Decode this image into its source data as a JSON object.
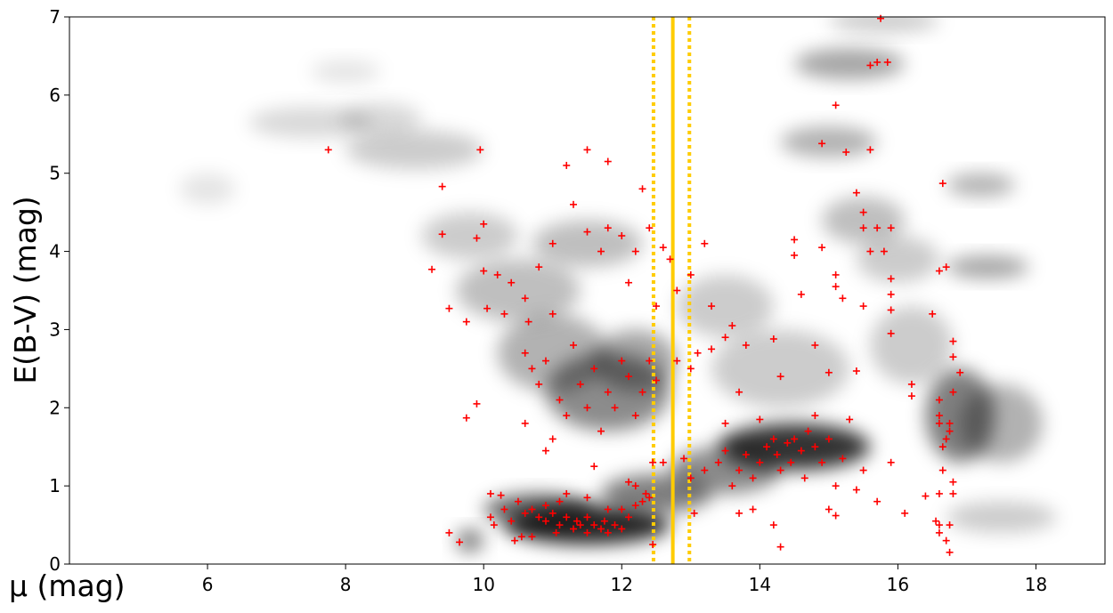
{
  "chart_data": {
    "type": "scatter",
    "x_label": "μ (mag)",
    "y_label": "E(B-V) (mag)",
    "xlim": [
      4,
      19
    ],
    "ylim": [
      0,
      7
    ],
    "xticks": [
      6,
      8,
      10,
      12,
      14,
      16,
      18
    ],
    "yticks": [
      0,
      1,
      2,
      3,
      4,
      5,
      6,
      7
    ],
    "series": [
      {
        "color": "#ff0000",
        "marker": "+",
        "x": [
          10.1,
          10.25,
          10.3,
          10.1,
          10.15,
          10.4,
          10.5,
          10.6,
          10.7,
          10.8,
          10.9,
          11,
          11.1,
          11.1,
          11.2,
          11.3,
          11.35,
          11.4,
          11.5,
          11.5,
          11.6,
          11.7,
          11.75,
          11.8,
          11.9,
          12,
          12,
          12.1,
          12.2,
          12.3,
          12.35,
          12.4,
          12.2,
          11.2,
          11.5,
          10.55,
          10.7,
          9.5,
          9.65,
          10.45,
          11.05,
          12.45,
          12.1,
          12.45,
          12.6,
          11.8,
          10.9,
          13,
          13.2,
          13.4,
          13.5,
          13.6,
          13.7,
          13.8,
          13.9,
          14,
          14.1,
          14.2,
          14.25,
          14.3,
          14.4,
          14.45,
          14.5,
          14.6,
          14.65,
          14.7,
          14.8,
          14.9,
          15,
          15.1,
          15.2,
          15.3,
          15.4,
          15.5,
          15.7,
          15.9,
          14.3,
          13.9,
          14.2,
          13.7,
          15,
          15.1,
          14,
          13.5,
          14.8,
          16.1,
          13.05,
          12.9,
          10.6,
          10.7,
          10.8,
          10.65,
          10.9,
          11,
          11.1,
          11.2,
          11.3,
          11.4,
          11.5,
          11.6,
          11.7,
          11.8,
          11.9,
          12,
          12.1,
          12.2,
          12.3,
          12.4,
          12.5,
          12.8,
          13,
          13.1,
          13.3,
          13.5,
          13.6,
          13.8,
          10.2,
          10.4,
          10.6,
          10.8,
          11,
          11.3,
          11.5,
          11.7,
          11.8,
          12,
          12.2,
          12.4,
          12.6,
          11.2,
          11.5,
          11.8,
          12.3,
          12.1,
          12.5,
          12.8,
          13,
          13.2,
          13.3,
          12.7,
          10.0,
          10.3,
          10.9,
          11.6,
          9.75,
          9.9,
          10.6,
          11,
          7.75,
          9.4,
          9.95,
          9.25,
          9.4,
          9.5,
          9.75,
          9.9,
          10.05,
          10.0,
          14.5,
          14.5,
          14.6,
          14.8,
          14.9,
          15.1,
          15.1,
          15.2,
          14.9,
          15.1,
          15.25,
          15.4,
          15.5,
          15.5,
          15.6,
          15.6,
          15.7,
          15.8,
          15.9,
          15.9,
          15.9,
          15.9,
          15.9,
          15.6,
          15.7,
          15.85,
          15.75,
          15.5,
          14.2,
          13.7,
          14.3,
          15,
          15.4,
          16.2,
          16.2,
          16.5,
          16.6,
          16.6,
          16.6,
          16.65,
          16.65,
          16.6,
          16.6,
          16.6,
          16.7,
          16.75,
          16.75,
          16.8,
          16.8,
          16.75,
          16.75,
          16.8,
          16.8,
          16.8,
          16.7,
          16.7,
          16.6,
          16.65,
          16.9,
          16.4,
          16.55
        ],
        "y": [
          0.9,
          0.88,
          0.7,
          0.6,
          0.5,
          0.55,
          0.8,
          0.65,
          0.7,
          0.6,
          0.55,
          0.65,
          0.5,
          0.8,
          0.6,
          0.45,
          0.55,
          0.5,
          0.6,
          0.4,
          0.5,
          0.45,
          0.55,
          0.4,
          0.5,
          0.45,
          0.7,
          0.6,
          0.75,
          0.8,
          0.9,
          0.85,
          1.0,
          0.9,
          0.85,
          0.35,
          0.35,
          0.4,
          0.28,
          0.3,
          0.4,
          0.25,
          1.05,
          1.3,
          1.3,
          0.7,
          0.75,
          1.1,
          1.2,
          1.3,
          1.45,
          1.0,
          1.2,
          1.4,
          1.1,
          1.3,
          1.5,
          1.6,
          1.4,
          1.2,
          1.55,
          1.3,
          1.6,
          1.45,
          1.1,
          1.7,
          1.5,
          1.3,
          1.6,
          1.0,
          1.35,
          1.85,
          0.95,
          1.2,
          0.8,
          1.3,
          0.22,
          0.7,
          0.5,
          0.65,
          0.7,
          0.62,
          1.85,
          1.8,
          1.9,
          0.65,
          0.65,
          1.35,
          2.7,
          2.5,
          2.3,
          3.1,
          2.6,
          3.2,
          2.1,
          1.9,
          2.8,
          2.3,
          2.0,
          2.5,
          1.7,
          2.2,
          2.0,
          2.6,
          2.4,
          1.9,
          2.2,
          2.6,
          2.35,
          2.6,
          2.5,
          2.7,
          2.75,
          2.9,
          3.05,
          2.8,
          3.7,
          3.6,
          3.4,
          3.8,
          4.1,
          4.6,
          4.25,
          4.0,
          4.3,
          4.2,
          4.0,
          4.3,
          4.05,
          5.1,
          5.3,
          5.15,
          4.8,
          3.6,
          3.3,
          3.5,
          3.7,
          4.1,
          3.3,
          3.9,
          4.35,
          3.2,
          1.45,
          1.25,
          1.87,
          2.05,
          1.8,
          1.6,
          5.3,
          4.83,
          5.3,
          3.77,
          4.22,
          3.27,
          3.1,
          4.17,
          3.27,
          3.75,
          3.95,
          4.15,
          3.45,
          2.8,
          4.05,
          3.7,
          3.55,
          3.4,
          5.38,
          5.87,
          5.27,
          4.75,
          4.5,
          4.3,
          5.3,
          4.0,
          4.3,
          4.0,
          4.3,
          3.65,
          3.45,
          3.25,
          2.95,
          6.38,
          6.42,
          6.42,
          6.98,
          3.3,
          2.88,
          2.2,
          2.4,
          2.45,
          2.47,
          2.3,
          2.15,
          3.2,
          1.8,
          1.9,
          2.1,
          1.5,
          1.2,
          0.9,
          0.5,
          0.4,
          0.3,
          0.15,
          0.5,
          0.9,
          1.05,
          1.7,
          1.8,
          2.2,
          2.65,
          2.85,
          1.6,
          3.8,
          3.75,
          4.87,
          2.45,
          0.87,
          0.55
        ]
      }
    ],
    "vlines": [
      {
        "x": 12.74,
        "color": "#ffcc00",
        "style": "solid"
      },
      {
        "x": 12.46,
        "color": "#ffcc00",
        "style": "dotted"
      },
      {
        "x": 12.98,
        "color": "#ffcc00",
        "style": "dotted"
      }
    ],
    "density": [
      {
        "x": 11.5,
        "y": 0.5,
        "rx": 1.2,
        "ry": 0.25,
        "level": 0.85
      },
      {
        "x": 10.8,
        "y": 0.7,
        "rx": 0.8,
        "ry": 0.2,
        "level": 0.6
      },
      {
        "x": 12.5,
        "y": 0.9,
        "rx": 0.8,
        "ry": 0.25,
        "level": 0.5
      },
      {
        "x": 14.5,
        "y": 1.5,
        "rx": 1.1,
        "ry": 0.3,
        "level": 0.8
      },
      {
        "x": 13.5,
        "y": 1.2,
        "rx": 0.8,
        "ry": 0.3,
        "level": 0.45
      },
      {
        "x": 11.8,
        "y": 2.2,
        "rx": 0.9,
        "ry": 0.5,
        "level": 0.45
      },
      {
        "x": 11,
        "y": 2.7,
        "rx": 0.8,
        "ry": 0.5,
        "level": 0.3
      },
      {
        "x": 12.2,
        "y": 2.6,
        "rx": 0.6,
        "ry": 0.4,
        "level": 0.35
      },
      {
        "x": 10.5,
        "y": 3.5,
        "rx": 0.9,
        "ry": 0.4,
        "level": 0.25
      },
      {
        "x": 11.5,
        "y": 4.1,
        "rx": 0.8,
        "ry": 0.3,
        "level": 0.25
      },
      {
        "x": 9.8,
        "y": 4.2,
        "rx": 0.7,
        "ry": 0.3,
        "level": 0.2
      },
      {
        "x": 9,
        "y": 5.3,
        "rx": 1,
        "ry": 0.25,
        "level": 0.2
      },
      {
        "x": 7.5,
        "y": 5.65,
        "rx": 0.9,
        "ry": 0.2,
        "level": 0.15
      },
      {
        "x": 8.5,
        "y": 5.7,
        "rx": 0.6,
        "ry": 0.2,
        "level": 0.15
      },
      {
        "x": 6,
        "y": 4.8,
        "rx": 0.4,
        "ry": 0.2,
        "level": 0.1
      },
      {
        "x": 8,
        "y": 6.3,
        "rx": 0.5,
        "ry": 0.15,
        "level": 0.1
      },
      {
        "x": 15.3,
        "y": 6.4,
        "rx": 0.8,
        "ry": 0.2,
        "level": 0.35
      },
      {
        "x": 15.8,
        "y": 6.95,
        "rx": 0.8,
        "ry": 0.15,
        "level": 0.2
      },
      {
        "x": 15,
        "y": 5.4,
        "rx": 0.7,
        "ry": 0.2,
        "level": 0.3
      },
      {
        "x": 15.5,
        "y": 4.4,
        "rx": 0.6,
        "ry": 0.3,
        "level": 0.25
      },
      {
        "x": 17.2,
        "y": 4.85,
        "rx": 0.5,
        "ry": 0.15,
        "level": 0.3
      },
      {
        "x": 17.3,
        "y": 3.8,
        "rx": 0.6,
        "ry": 0.15,
        "level": 0.35
      },
      {
        "x": 16.9,
        "y": 1.9,
        "rx": 0.5,
        "ry": 0.6,
        "level": 0.5
      },
      {
        "x": 17.5,
        "y": 1.8,
        "rx": 0.6,
        "ry": 0.5,
        "level": 0.3
      },
      {
        "x": 14.3,
        "y": 2.5,
        "rx": 1,
        "ry": 0.5,
        "level": 0.2
      },
      {
        "x": 13.5,
        "y": 3.3,
        "rx": 0.7,
        "ry": 0.4,
        "level": 0.2
      },
      {
        "x": 16.2,
        "y": 2.8,
        "rx": 0.6,
        "ry": 0.5,
        "level": 0.2
      },
      {
        "x": 9.8,
        "y": 0.3,
        "rx": 0.2,
        "ry": 0.15,
        "level": 0.5
      },
      {
        "x": 17.5,
        "y": 0.6,
        "rx": 0.8,
        "ry": 0.2,
        "level": 0.2
      },
      {
        "x": 16,
        "y": 3.9,
        "rx": 0.6,
        "ry": 0.3,
        "level": 0.2
      }
    ]
  }
}
